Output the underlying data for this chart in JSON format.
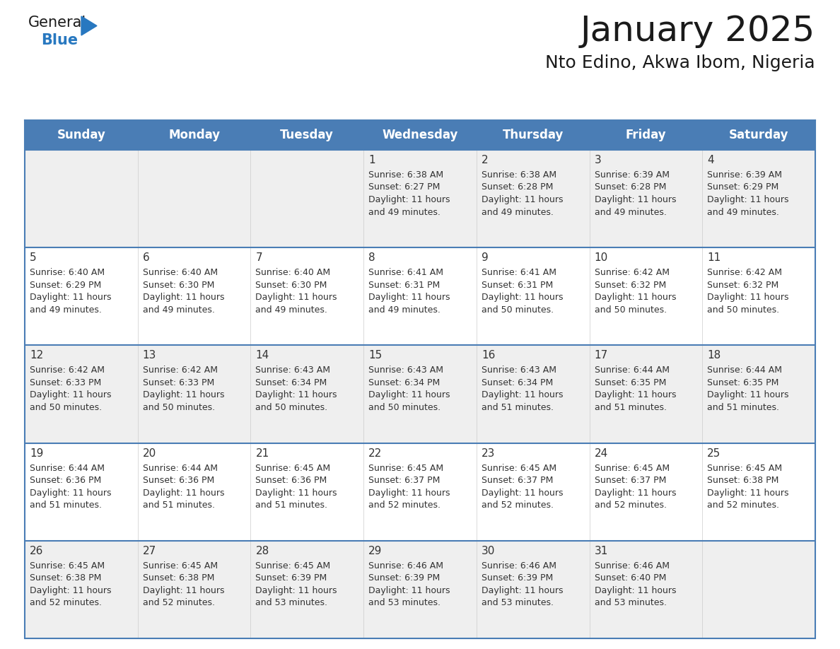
{
  "title": "January 2025",
  "subtitle": "Nto Edino, Akwa Ibom, Nigeria",
  "header_bg_color": "#4A7DB5",
  "header_text_color": "#FFFFFF",
  "row_bg_even": "#EFEFEF",
  "row_bg_odd": "#FFFFFF",
  "border_color": "#4A7DB5",
  "text_color": "#333333",
  "day_headers": [
    "Sunday",
    "Monday",
    "Tuesday",
    "Wednesday",
    "Thursday",
    "Friday",
    "Saturday"
  ],
  "weeks": [
    [
      {
        "day": "",
        "info": ""
      },
      {
        "day": "",
        "info": ""
      },
      {
        "day": "",
        "info": ""
      },
      {
        "day": "1",
        "info": "Sunrise: 6:38 AM\nSunset: 6:27 PM\nDaylight: 11 hours\nand 49 minutes."
      },
      {
        "day": "2",
        "info": "Sunrise: 6:38 AM\nSunset: 6:28 PM\nDaylight: 11 hours\nand 49 minutes."
      },
      {
        "day": "3",
        "info": "Sunrise: 6:39 AM\nSunset: 6:28 PM\nDaylight: 11 hours\nand 49 minutes."
      },
      {
        "day": "4",
        "info": "Sunrise: 6:39 AM\nSunset: 6:29 PM\nDaylight: 11 hours\nand 49 minutes."
      }
    ],
    [
      {
        "day": "5",
        "info": "Sunrise: 6:40 AM\nSunset: 6:29 PM\nDaylight: 11 hours\nand 49 minutes."
      },
      {
        "day": "6",
        "info": "Sunrise: 6:40 AM\nSunset: 6:30 PM\nDaylight: 11 hours\nand 49 minutes."
      },
      {
        "day": "7",
        "info": "Sunrise: 6:40 AM\nSunset: 6:30 PM\nDaylight: 11 hours\nand 49 minutes."
      },
      {
        "day": "8",
        "info": "Sunrise: 6:41 AM\nSunset: 6:31 PM\nDaylight: 11 hours\nand 49 minutes."
      },
      {
        "day": "9",
        "info": "Sunrise: 6:41 AM\nSunset: 6:31 PM\nDaylight: 11 hours\nand 50 minutes."
      },
      {
        "day": "10",
        "info": "Sunrise: 6:42 AM\nSunset: 6:32 PM\nDaylight: 11 hours\nand 50 minutes."
      },
      {
        "day": "11",
        "info": "Sunrise: 6:42 AM\nSunset: 6:32 PM\nDaylight: 11 hours\nand 50 minutes."
      }
    ],
    [
      {
        "day": "12",
        "info": "Sunrise: 6:42 AM\nSunset: 6:33 PM\nDaylight: 11 hours\nand 50 minutes."
      },
      {
        "day": "13",
        "info": "Sunrise: 6:42 AM\nSunset: 6:33 PM\nDaylight: 11 hours\nand 50 minutes."
      },
      {
        "day": "14",
        "info": "Sunrise: 6:43 AM\nSunset: 6:34 PM\nDaylight: 11 hours\nand 50 minutes."
      },
      {
        "day": "15",
        "info": "Sunrise: 6:43 AM\nSunset: 6:34 PM\nDaylight: 11 hours\nand 50 minutes."
      },
      {
        "day": "16",
        "info": "Sunrise: 6:43 AM\nSunset: 6:34 PM\nDaylight: 11 hours\nand 51 minutes."
      },
      {
        "day": "17",
        "info": "Sunrise: 6:44 AM\nSunset: 6:35 PM\nDaylight: 11 hours\nand 51 minutes."
      },
      {
        "day": "18",
        "info": "Sunrise: 6:44 AM\nSunset: 6:35 PM\nDaylight: 11 hours\nand 51 minutes."
      }
    ],
    [
      {
        "day": "19",
        "info": "Sunrise: 6:44 AM\nSunset: 6:36 PM\nDaylight: 11 hours\nand 51 minutes."
      },
      {
        "day": "20",
        "info": "Sunrise: 6:44 AM\nSunset: 6:36 PM\nDaylight: 11 hours\nand 51 minutes."
      },
      {
        "day": "21",
        "info": "Sunrise: 6:45 AM\nSunset: 6:36 PM\nDaylight: 11 hours\nand 51 minutes."
      },
      {
        "day": "22",
        "info": "Sunrise: 6:45 AM\nSunset: 6:37 PM\nDaylight: 11 hours\nand 52 minutes."
      },
      {
        "day": "23",
        "info": "Sunrise: 6:45 AM\nSunset: 6:37 PM\nDaylight: 11 hours\nand 52 minutes."
      },
      {
        "day": "24",
        "info": "Sunrise: 6:45 AM\nSunset: 6:37 PM\nDaylight: 11 hours\nand 52 minutes."
      },
      {
        "day": "25",
        "info": "Sunrise: 6:45 AM\nSunset: 6:38 PM\nDaylight: 11 hours\nand 52 minutes."
      }
    ],
    [
      {
        "day": "26",
        "info": "Sunrise: 6:45 AM\nSunset: 6:38 PM\nDaylight: 11 hours\nand 52 minutes."
      },
      {
        "day": "27",
        "info": "Sunrise: 6:45 AM\nSunset: 6:38 PM\nDaylight: 11 hours\nand 52 minutes."
      },
      {
        "day": "28",
        "info": "Sunrise: 6:45 AM\nSunset: 6:39 PM\nDaylight: 11 hours\nand 53 minutes."
      },
      {
        "day": "29",
        "info": "Sunrise: 6:46 AM\nSunset: 6:39 PM\nDaylight: 11 hours\nand 53 minutes."
      },
      {
        "day": "30",
        "info": "Sunrise: 6:46 AM\nSunset: 6:39 PM\nDaylight: 11 hours\nand 53 minutes."
      },
      {
        "day": "31",
        "info": "Sunrise: 6:46 AM\nSunset: 6:40 PM\nDaylight: 11 hours\nand 53 minutes."
      },
      {
        "day": "",
        "info": ""
      }
    ]
  ],
  "logo_general_color": "#1a1a1a",
  "logo_blue_color": "#2878C0",
  "logo_triangle_color": "#2878C0",
  "title_fontsize": 36,
  "subtitle_fontsize": 18,
  "header_fontsize": 12,
  "day_num_fontsize": 11,
  "info_fontsize": 9
}
